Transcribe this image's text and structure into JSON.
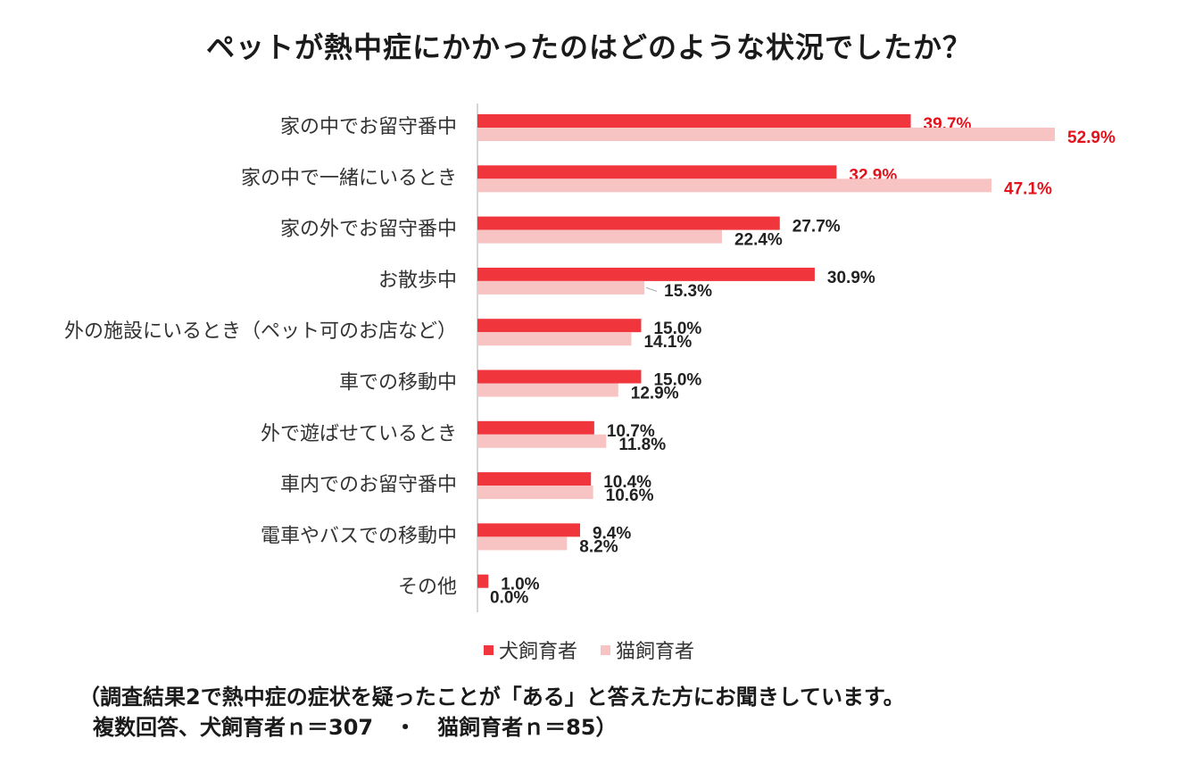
{
  "chart_data": {
    "type": "bar",
    "orientation": "horizontal",
    "title": "ペットが熱中症にかかったのはどのような状況でしたか？",
    "categories": [
      "家の中でお留守番中",
      "家の中で一緒にいるとき",
      "家の外でお留守番中",
      "お散歩中",
      "外の施設にいるとき（ペット可のお店など）",
      "車での移動中",
      "外で遊ばせているとき",
      "車内でのお留守番中",
      "電車やバスでの移動中",
      "その他"
    ],
    "series": [
      {
        "name": "犬飼育者",
        "color": "#f0353c",
        "values": [
          39.7,
          32.9,
          27.7,
          30.9,
          15.0,
          15.0,
          10.7,
          10.4,
          9.4,
          1.0
        ],
        "labels": [
          "39.7%",
          "32.9%",
          "27.7%",
          "30.9%",
          "15.0%",
          "15.0%",
          "10.7%",
          "10.4%",
          "9.4%",
          "1.0%"
        ]
      },
      {
        "name": "猫飼育者",
        "color": "#f7c3c3",
        "values": [
          52.9,
          47.1,
          22.4,
          15.3,
          14.1,
          12.9,
          11.8,
          10.6,
          8.2,
          0.0
        ],
        "labels": [
          "52.9%",
          "47.1%",
          "22.4%",
          "15.3%",
          "14.1%",
          "12.9%",
          "11.8%",
          "10.6%",
          "8.2%",
          "0.0%"
        ]
      }
    ],
    "highlight_color": "#e3121b",
    "highlighted_rows": [
      0,
      1
    ],
    "xlim": [
      0,
      53
    ],
    "grid": false,
    "legend_position": "bottom"
  },
  "note": {
    "line1": "（調査結果2で熱中症の症状を疑ったことが「ある」と答えた方にお聞きしています。",
    "line2": "複数回答、犬飼育者ｎ＝307　・　猫飼育者ｎ＝85）"
  }
}
